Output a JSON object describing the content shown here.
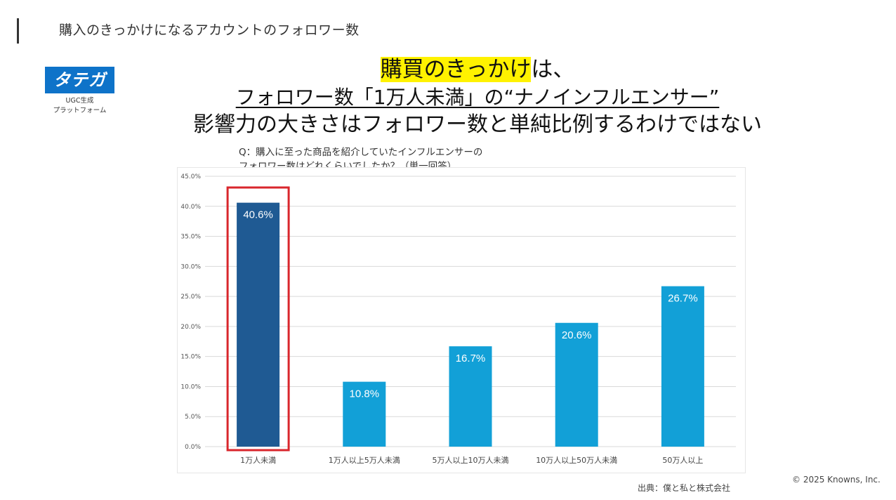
{
  "header": {
    "title": "購入のきっかけになるアカウントのフォロワー数"
  },
  "logo": {
    "name": "タテガタ",
    "sub1": "UGC生成",
    "sub2": "プラットフォーム"
  },
  "headline": {
    "line1_highlight": "購買のきっかけ",
    "line1_rest": "は、",
    "line2": "フォロワー数「1万人未満」の“ナノインフルエンサー”",
    "line3": "影響力の大きさはフォロワー数と単純比例するわけではない"
  },
  "question": {
    "line1": "Q：購入に至った商品を紹介していたインフルエンサーの",
    "line2": "フォロワー数はどれくらいでしたか？（単一回答）"
  },
  "chart_data": {
    "type": "bar",
    "categories": [
      "1万人未満",
      "1万人以上5万人未満",
      "5万人以上10万人未満",
      "10万人以上50万人未満",
      "50万人以上"
    ],
    "values": [
      40.6,
      10.8,
      16.7,
      20.6,
      26.7
    ],
    "data_labels": [
      "40.6%",
      "10.8%",
      "16.7%",
      "20.6%",
      "26.7%"
    ],
    "ylim": [
      0,
      45
    ],
    "yticks": [
      0,
      5,
      10,
      15,
      20,
      25,
      30,
      35,
      40,
      45
    ],
    "ytick_labels": [
      "0.0%",
      "5.0%",
      "10.0%",
      "15.0%",
      "20.0%",
      "25.0%",
      "30.0%",
      "35.0%",
      "40.0%",
      "45.0%"
    ],
    "grid": true,
    "highlight_index": 0,
    "colors": {
      "highlight": "#1f5a93",
      "default": "#12a0d7",
      "frame": "#d9262c",
      "grid": "#d9d9d9"
    }
  },
  "footer": {
    "source": "出典：僕と私と株式会社",
    "copyright": "© 2025 Knowns, Inc."
  }
}
